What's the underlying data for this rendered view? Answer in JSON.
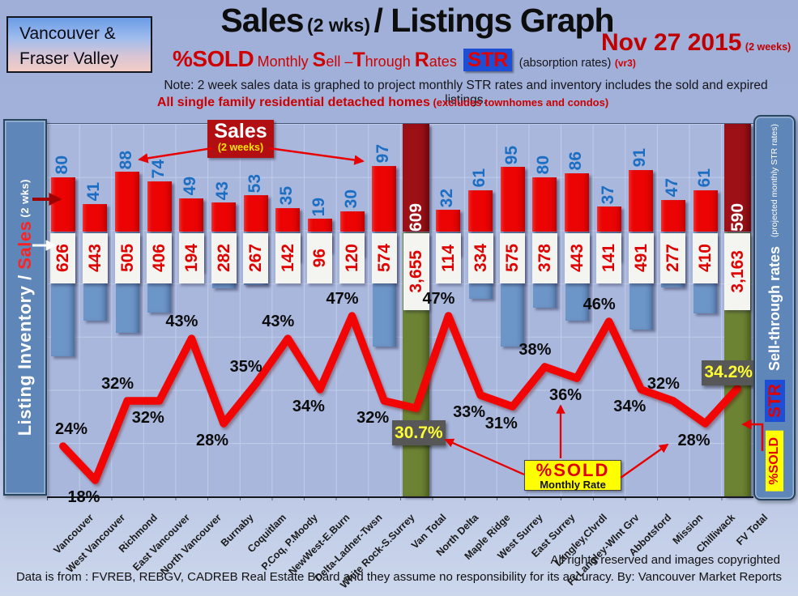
{
  "header": {
    "region": {
      "line1": "Vancouver &",
      "line2": "Fraser Valley"
    },
    "title": {
      "main1": "Sales",
      "small": "(2 wks)",
      "main2": "/ Listings Graph"
    },
    "date": {
      "text": "Nov 27 2015",
      "suffix": "(2 weeks)"
    },
    "subtitle": {
      "lead": "%SOLD",
      "segments": [
        {
          "t": "Monthly ",
          "em": false
        },
        {
          "t": "S",
          "em": true
        },
        {
          "t": "ell –",
          "em": false
        },
        {
          "t": "T",
          "em": true
        },
        {
          "t": "hrough ",
          "em": false
        },
        {
          "t": "R",
          "em": true
        },
        {
          "t": "ates",
          "em": false
        }
      ],
      "badge": "STR",
      "paren": "(absorption rates)",
      "version": "(vr3)"
    },
    "note": "Note: 2 week sales data is graphed to project monthly STR rates and inventory includes the sold and expired listings.",
    "subnote": {
      "main": "All single family residential detached homes",
      "paren": " (excludes townhomes and condos)"
    }
  },
  "left_sidebar": {
    "part1": "Listing Inventory / ",
    "part2": "Sales",
    "part3": " (2  wks)"
  },
  "right_sidebar": {
    "top_note": "(projected monthly STR rates)",
    "title": "Sell-through rates",
    "badge": "STR",
    "bottom": "%SOLD"
  },
  "annotations": {
    "sales_callout": {
      "title": "Sales",
      "subtitle": "(2 weeks)"
    },
    "pct_callout": {
      "title": "%SOLD",
      "subtitle": "Monthly Rate"
    }
  },
  "footer": {
    "rights": "All rights reserved and  images copyrighted",
    "source": "Data is from : FVREB, REBGV, CADREB Real Estate Board and they assume no responsibility for its accuracy. By: Vancouver Market Reports"
  },
  "colors": {
    "accent_red": "#e80000",
    "dark_red": "#c00000",
    "title_black": "#0d0d0d",
    "bar_red": "#ec0404",
    "bar_blue": "#6d96c8",
    "total_bar_red": "#9c1016",
    "total_bar_green": "#6d8334",
    "line_red": "#f20505",
    "sales_count_blue": "#1b6ec2",
    "inventory_red": "#e00000",
    "box_gray": "#575757",
    "box_yellow_text": "#ffff33",
    "callout_yellow": "#ffff00",
    "badge_blue": "#1d4fd6",
    "sidebar_blue": "#5e86b8",
    "plot_bg": "#a9b7dd",
    "grid_line": "#c0ccea"
  },
  "chart_data": {
    "type": "bar+line combo",
    "title": "Sales (2 wks)/ Listings Graph",
    "date": "Nov 27 2015",
    "bar_series": [
      {
        "name": "Sales (2 weeks)",
        "color": "#ec0404",
        "direction": "up",
        "values_key": "sales"
      },
      {
        "name": "Listing Inventory",
        "color": "#6d96c8",
        "direction": "down",
        "values_key": "inventory"
      }
    ],
    "line_series": {
      "name": "%SOLD Monthly Sell-Through Rate (STR)",
      "color": "#f20505",
      "values_key": "pct",
      "unit": "%"
    },
    "totals_style": {
      "sales_color": "#9c1016",
      "inventory_color": "#6d8334"
    },
    "points": [
      {
        "area": "Vancouver",
        "sales": 80,
        "inventory": 626,
        "pct": 24,
        "pct_label": "24%",
        "label_side": "above"
      },
      {
        "area": "West Vancouver",
        "sales": 41,
        "inventory": 443,
        "pct": 18,
        "pct_label": "18%",
        "label_side": "below"
      },
      {
        "area": "Richmond",
        "sales": 88,
        "inventory": 505,
        "pct": 32,
        "pct_label": "32%",
        "label_side": "above"
      },
      {
        "area": "East Vancouver",
        "sales": 74,
        "inventory": 406,
        "pct": 32,
        "pct_label": "32%",
        "label_side": "below"
      },
      {
        "area": "North Vancouver",
        "sales": 49,
        "inventory": 194,
        "pct": 43,
        "pct_label": "43%",
        "label_side": "above"
      },
      {
        "area": "Burnaby",
        "sales": 43,
        "inventory": 282,
        "pct": 28,
        "pct_label": "28%",
        "label_side": "below"
      },
      {
        "area": "Coquitlam",
        "sales": 53,
        "inventory": 267,
        "pct": 35,
        "pct_label": "35%",
        "label_side": "above"
      },
      {
        "area": "P.Coq, P.Moody",
        "sales": 35,
        "inventory": 142,
        "pct": 43,
        "pct_label": "43%",
        "label_side": "above"
      },
      {
        "area": "NewWest-E.Burn",
        "sales": 19,
        "inventory": 96,
        "pct": 34,
        "pct_label": "34%",
        "label_side": "below"
      },
      {
        "area": "Delta-Ladner-Twsn",
        "sales": 30,
        "inventory": 120,
        "pct": 47,
        "pct_label": "47%",
        "label_side": "above"
      },
      {
        "area": "White Rock-S.Surrey",
        "sales": 97,
        "inventory": 574,
        "pct": 32,
        "pct_label": "32%",
        "label_side": "below"
      },
      {
        "area": "Van Total",
        "sales": 609,
        "sales_label": "609",
        "inventory": 3655,
        "inventory_label": "3,655",
        "pct": 30.7,
        "pct_label": "30.7%",
        "label_side": "box-below",
        "total": true
      },
      {
        "area": "North Delta",
        "sales": 32,
        "inventory": 114,
        "pct": 47,
        "pct_label": "47%",
        "label_side": "above"
      },
      {
        "area": "Maple Ridge",
        "sales": 61,
        "inventory": 334,
        "pct": 33,
        "pct_label": "33%",
        "label_side": "below"
      },
      {
        "area": "West Surrey",
        "sales": 95,
        "inventory": 575,
        "pct": 31,
        "pct_label": "31%",
        "label_side": "below"
      },
      {
        "area": "East Surrey",
        "sales": 80,
        "inventory": 378,
        "pct": 38,
        "pct_label": "38%",
        "label_side": "above"
      },
      {
        "area": "Langley,Clvrdl",
        "sales": 86,
        "inventory": 443,
        "pct": 36,
        "pct_label": "36%",
        "label_side": "below"
      },
      {
        "area": "Ft Langley-Wlnt Grv",
        "sales": 37,
        "inventory": 141,
        "pct": 46,
        "pct_label": "46%",
        "label_side": "above"
      },
      {
        "area": "Abbotsford",
        "sales": 91,
        "inventory": 491,
        "pct": 34,
        "pct_label": "34%",
        "label_side": "below"
      },
      {
        "area": "Mission",
        "sales": 47,
        "inventory": 277,
        "pct": 32,
        "pct_label": "32%",
        "label_side": "above"
      },
      {
        "area": "Chilliwack",
        "sales": 61,
        "inventory": 410,
        "pct": 28,
        "pct_label": "28%",
        "label_side": "below"
      },
      {
        "area": "FV Total",
        "sales": 590,
        "sales_label": "590",
        "inventory": 3163,
        "inventory_label": "3,163",
        "pct": 34.2,
        "pct_label": "34.2%",
        "label_side": "box-above",
        "total": true
      }
    ]
  }
}
